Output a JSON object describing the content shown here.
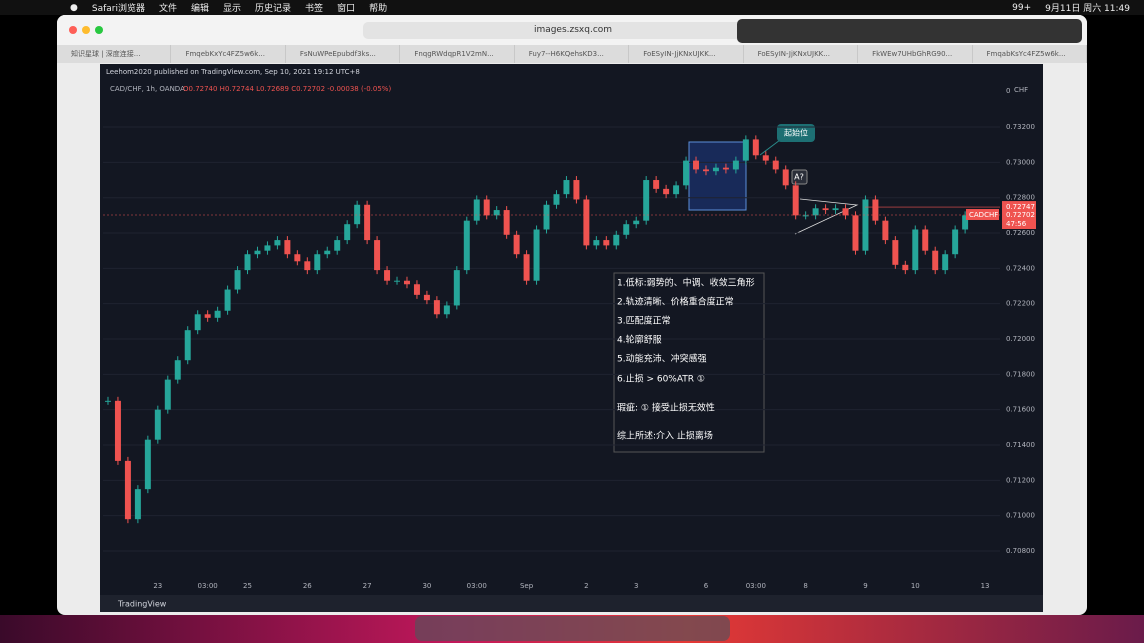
{
  "menubar": {
    "items": [
      "Safari浏览器",
      "文件",
      "编辑",
      "显示",
      "历史记录",
      "书签",
      "窗口",
      "帮助"
    ],
    "badge": "99+",
    "clock": "9月11日 周六 11:49"
  },
  "browser": {
    "url": "images.zsxq.com",
    "tabs": [
      "知识星球 | 深度连接...",
      "FmqebKxYc4FZ5w6k...",
      "FsNuWPeEpubdf3ks...",
      "FnqgRWdqpR1V2mN...",
      "Fuy7--H6KQehsKD3...",
      "FoESyIN-JjKNxUJKK...",
      "FoESyIN-JjKNxUJKK...",
      "FkWEw7UHbGhRG90...",
      "FmqabKsYc4FZ5w6k..."
    ]
  },
  "chart_data": {
    "type": "candlestick",
    "title": "Leehom2020 published on TradingView.com, Sep 10, 2021 19:12 UTC+8",
    "symbol": "CAD/CHF, 1h, OANDA",
    "ohlc": "O0.72740 H0.72744 L0.72689 C0.72702 -0.00038 (-0.05%)",
    "currency": "CHF",
    "axis_top_label": "0",
    "categories": [
      null,
      null,
      null,
      null,
      null,
      "23",
      null,
      null,
      null,
      null,
      "03:00",
      null,
      null,
      null,
      "25",
      null,
      null,
      null,
      null,
      null,
      "26",
      null,
      null,
      null,
      null,
      null,
      "27",
      null,
      null,
      null,
      null,
      null,
      "30",
      null,
      null,
      null,
      null,
      "03:00",
      null,
      null,
      null,
      null,
      "Sep",
      null,
      null,
      null,
      null,
      null,
      "2",
      null,
      null,
      null,
      null,
      "3",
      null,
      null,
      null,
      null,
      null,
      null,
      "6",
      null,
      null,
      null,
      null,
      "03:00",
      null,
      null,
      null,
      null,
      "8",
      null,
      null,
      null,
      null,
      null,
      "9",
      null,
      null,
      null,
      null,
      "10",
      null,
      null,
      null,
      null,
      null,
      null,
      "13",
      null
    ],
    "values": [
      0.7165,
      0.7131,
      0.7098,
      0.7115,
      0.7143,
      0.716,
      0.7177,
      0.7188,
      0.7205,
      0.7214,
      0.7212,
      0.7216,
      0.7228,
      0.7239,
      0.7248,
      0.725,
      0.7253,
      0.7256,
      0.7248,
      0.7244,
      0.7239,
      0.7248,
      0.725,
      0.7256,
      0.7265,
      0.7276,
      0.7256,
      0.7239,
      0.7233,
      0.7233,
      0.7231,
      0.7225,
      0.7222,
      0.7214,
      0.7219,
      0.7239,
      0.7267,
      0.7279,
      0.727,
      0.7273,
      0.7259,
      0.7248,
      0.7233,
      0.7262,
      0.7276,
      0.7282,
      0.729,
      0.7279,
      0.7253,
      0.7256,
      0.7253,
      0.7259,
      0.7265,
      0.7267,
      0.729,
      0.7285,
      0.7282,
      0.7287,
      0.7301,
      0.7296,
      0.7295,
      0.7297,
      0.7296,
      0.7301,
      0.7313,
      0.7304,
      0.7301,
      0.7296,
      0.7287,
      0.727,
      0.727,
      0.7274,
      0.7273,
      0.7274,
      0.727,
      0.725,
      0.7279,
      0.7267,
      0.7256,
      0.7242,
      0.7239,
      0.7262,
      0.725,
      0.7239,
      0.7248,
      0.7262,
      0.727,
      null,
      null,
      null
    ],
    "up_color": "#26a69a",
    "down_color": "#ef5350",
    "ylim": [
      0.70647,
      0.73455
    ],
    "yticks": [
      {
        "value": 0.708,
        "label": "0.70800"
      },
      {
        "value": 0.71,
        "label": "0.71000"
      },
      {
        "value": 0.712,
        "label": "0.71200"
      },
      {
        "value": 0.714,
        "label": "0.71400"
      },
      {
        "value": 0.716,
        "label": "0.71600"
      },
      {
        "value": 0.718,
        "label": "0.71800"
      },
      {
        "value": 0.72,
        "label": "0.72000"
      },
      {
        "value": 0.722,
        "label": "0.72200"
      },
      {
        "value": 0.724,
        "label": "0.72400"
      },
      {
        "value": 0.726,
        "label": "0.72600"
      },
      {
        "value": 0.728,
        "label": "0.72800"
      },
      {
        "value": 0.73,
        "label": "0.73000"
      },
      {
        "value": 0.732,
        "label": "0.73200"
      }
    ],
    "grid": true,
    "price_tag": {
      "value": 0.72747,
      "label": "0.72747"
    },
    "last_price": {
      "value": 0.72702,
      "label": "0.72702",
      "symbol_tag": "CADCHF",
      "countdown": "47:56"
    },
    "box_label": "起始位",
    "marker_label": "A?",
    "note_lines": [
      "1.低标:弱势的、中调、收敛三角形",
      "2.轨迹清晰、价格重合度正常",
      "3.匹配度正常",
      "4.轮廓舒服",
      "5.动能充沛、冲突感强",
      "6.止损 > 60%ATR ①",
      "瑕疵: ① 接受止损无效性",
      "综上所述:介入 止损离场"
    ],
    "branding": "TradingView"
  }
}
